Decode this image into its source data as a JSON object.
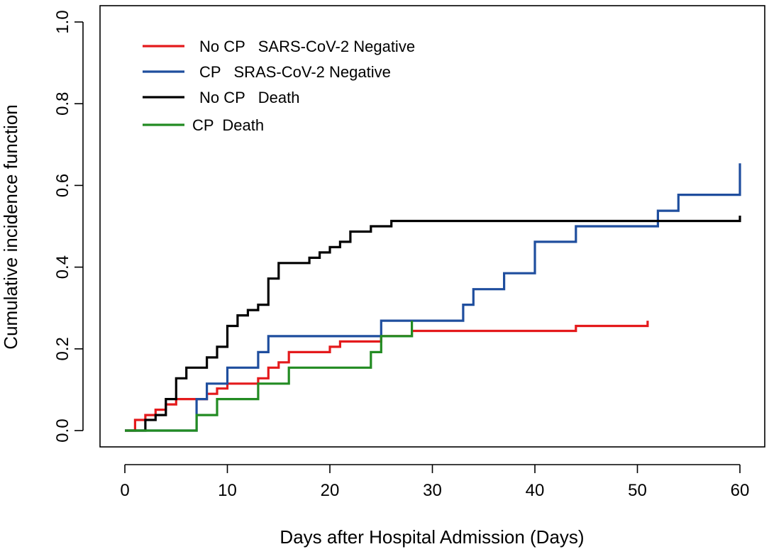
{
  "chart_data": {
    "type": "line",
    "step": true,
    "title": "",
    "xlabel": "Days after Hospital Admission (Days)",
    "ylabel": "Cumulative incidence function",
    "xlim": [
      0,
      60
    ],
    "ylim": [
      0,
      1
    ],
    "xticks": [
      0,
      10,
      20,
      30,
      40,
      50,
      60
    ],
    "xtick_labels": [
      "0",
      "10",
      "20",
      "30",
      "40",
      "50",
      "60"
    ],
    "yticks": [
      0,
      0.2,
      0.4,
      0.6,
      0.8,
      1.0
    ],
    "ytick_labels": [
      "0.0",
      "0.2",
      "0.4",
      "0.6",
      "0.8",
      "1.0"
    ],
    "grid": false,
    "legend_position": "top-left",
    "series": [
      {
        "name": "No CP   SARS-CoV-2 Negative",
        "color": "#e41a1c",
        "x": [
          0,
          1,
          2,
          3,
          4,
          5,
          8,
          9,
          10,
          13,
          14,
          15,
          16,
          20,
          21,
          22,
          24,
          25,
          28,
          44,
          51
        ],
        "y": [
          0,
          0.026,
          0.038,
          0.051,
          0.064,
          0.077,
          0.09,
          0.103,
          0.115,
          0.128,
          0.154,
          0.167,
          0.192,
          0.205,
          0.218,
          0.218,
          0.218,
          0.231,
          0.244,
          0.256,
          0.269
        ]
      },
      {
        "name": "CP   SRAS-CoV-2 Negative",
        "color": "#1f4e9e",
        "x": [
          0,
          7,
          8,
          10,
          13,
          14,
          25,
          33,
          34,
          37,
          40,
          44,
          52,
          54,
          60
        ],
        "y": [
          0,
          0.077,
          0.115,
          0.154,
          0.192,
          0.231,
          0.269,
          0.308,
          0.346,
          0.385,
          0.462,
          0.5,
          0.538,
          0.577,
          0.654
        ]
      },
      {
        "name": "No CP   Death",
        "color": "#000000",
        "x": [
          0,
          2,
          3,
          4,
          5,
          6,
          8,
          9,
          10,
          11,
          12,
          13,
          14,
          15,
          18,
          19,
          20,
          21,
          22,
          24,
          26,
          60
        ],
        "y": [
          0,
          0.026,
          0.038,
          0.077,
          0.128,
          0.154,
          0.179,
          0.205,
          0.256,
          0.282,
          0.295,
          0.308,
          0.372,
          0.41,
          0.423,
          0.436,
          0.449,
          0.462,
          0.487,
          0.5,
          0.513,
          0.526
        ]
      },
      {
        "name": "CP  Death",
        "color": "#228b22",
        "x": [
          0,
          7,
          9,
          13,
          16,
          24,
          25,
          28
        ],
        "y": [
          0,
          0.038,
          0.077,
          0.115,
          0.154,
          0.192,
          0.231,
          0.269
        ]
      }
    ]
  }
}
